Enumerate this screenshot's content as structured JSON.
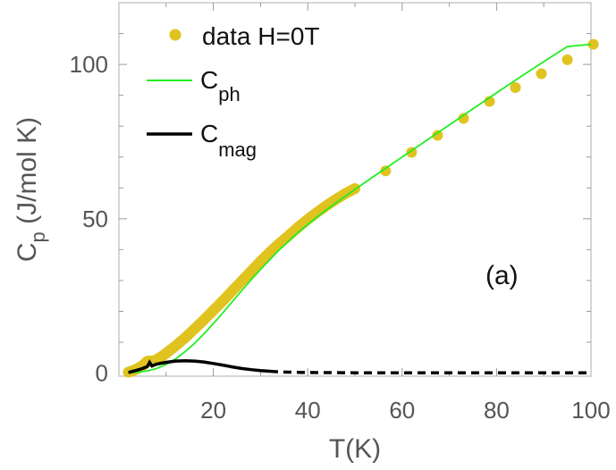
{
  "chart_data": {
    "type": "line",
    "title": "",
    "xlabel": "T(K)",
    "ylabel_main": "C",
    "ylabel_sub": "p",
    "ylabel_units": " (J/mol K)",
    "xlim": [
      0,
      100
    ],
    "ylim": [
      -1,
      120
    ],
    "xticks": [
      20,
      40,
      60,
      80,
      100
    ],
    "yticks": [
      0,
      50,
      100
    ],
    "xtick_labels": [
      "20",
      "40",
      "60",
      "80",
      "100"
    ],
    "ytick_labels": [
      "0",
      "50",
      "100"
    ],
    "grid": false,
    "legend_position": "top-left",
    "annotation": "(a)",
    "series": [
      {
        "name": "data H=0T",
        "label_main": "data H=0T",
        "label_sub": "",
        "kind": "scatter",
        "color": "#e0c31f",
        "x": [
          2,
          3,
          4,
          5,
          6,
          6.5,
          7,
          8,
          9,
          10,
          12,
          14,
          16,
          18,
          20,
          22,
          24,
          26,
          28,
          30,
          32,
          34,
          36,
          38,
          40,
          42,
          44,
          46,
          48,
          50,
          56.5,
          62,
          67.5,
          73,
          78.5,
          84,
          89.5,
          95,
          100.5
        ],
        "y": [
          0.3,
          0.8,
          1.5,
          2.4,
          3.8,
          3.9,
          3.7,
          4.4,
          5.3,
          6.4,
          8.8,
          11.4,
          14.3,
          17.2,
          20.3,
          23.4,
          26.6,
          29.8,
          33.0,
          36.2,
          39.2,
          42.0,
          44.6,
          47.3,
          49.8,
          52.1,
          54.3,
          56.3,
          58.2,
          59.8,
          65.5,
          71.5,
          77.0,
          82.5,
          88.0,
          92.5,
          97.0,
          101.5,
          106.5
        ]
      },
      {
        "name": "C_ph",
        "label_main": "C",
        "label_sub": "ph",
        "kind": "line",
        "color": "#22ee22",
        "x": [
          2,
          4,
          6,
          8,
          10,
          12,
          14,
          16,
          18,
          20,
          22,
          24,
          26,
          28,
          30,
          34,
          38,
          42,
          46,
          50,
          55,
          60,
          65,
          70,
          75,
          80,
          85,
          90,
          95,
          100
        ],
        "y": [
          0.1,
          0.3,
          0.7,
          1.5,
          2.8,
          4.6,
          6.9,
          9.6,
          12.7,
          16.0,
          19.5,
          23.1,
          26.7,
          30.2,
          33.6,
          40.0,
          45.6,
          50.6,
          55.2,
          59.5,
          64.8,
          70.0,
          75.2,
          80.4,
          85.6,
          90.8,
          95.9,
          100.9,
          105.8,
          106.5
        ]
      },
      {
        "name": "C_mag",
        "label_main": "C",
        "label_sub": "mag",
        "kind": "line",
        "color": "#000000",
        "x": [
          2,
          3,
          4,
          5,
          6,
          6.5,
          7,
          8,
          10,
          12,
          14,
          16,
          18,
          20,
          22,
          24,
          26,
          28,
          30,
          32,
          34,
          36,
          38,
          40,
          45,
          50,
          55,
          60,
          65,
          70,
          75,
          80,
          85,
          90,
          95,
          100
        ],
        "y": [
          0.2,
          0.6,
          1.0,
          1.5,
          2.1,
          3.5,
          2.3,
          2.9,
          3.5,
          3.9,
          4.0,
          3.9,
          3.6,
          3.1,
          2.6,
          2.0,
          1.5,
          1.1,
          0.8,
          0.6,
          0.4,
          0.3,
          0.25,
          0.2,
          0.15,
          0.1,
          0.1,
          0.1,
          0.1,
          0.1,
          0.1,
          0.1,
          0.1,
          0.1,
          0.1,
          0.1
        ]
      }
    ]
  }
}
